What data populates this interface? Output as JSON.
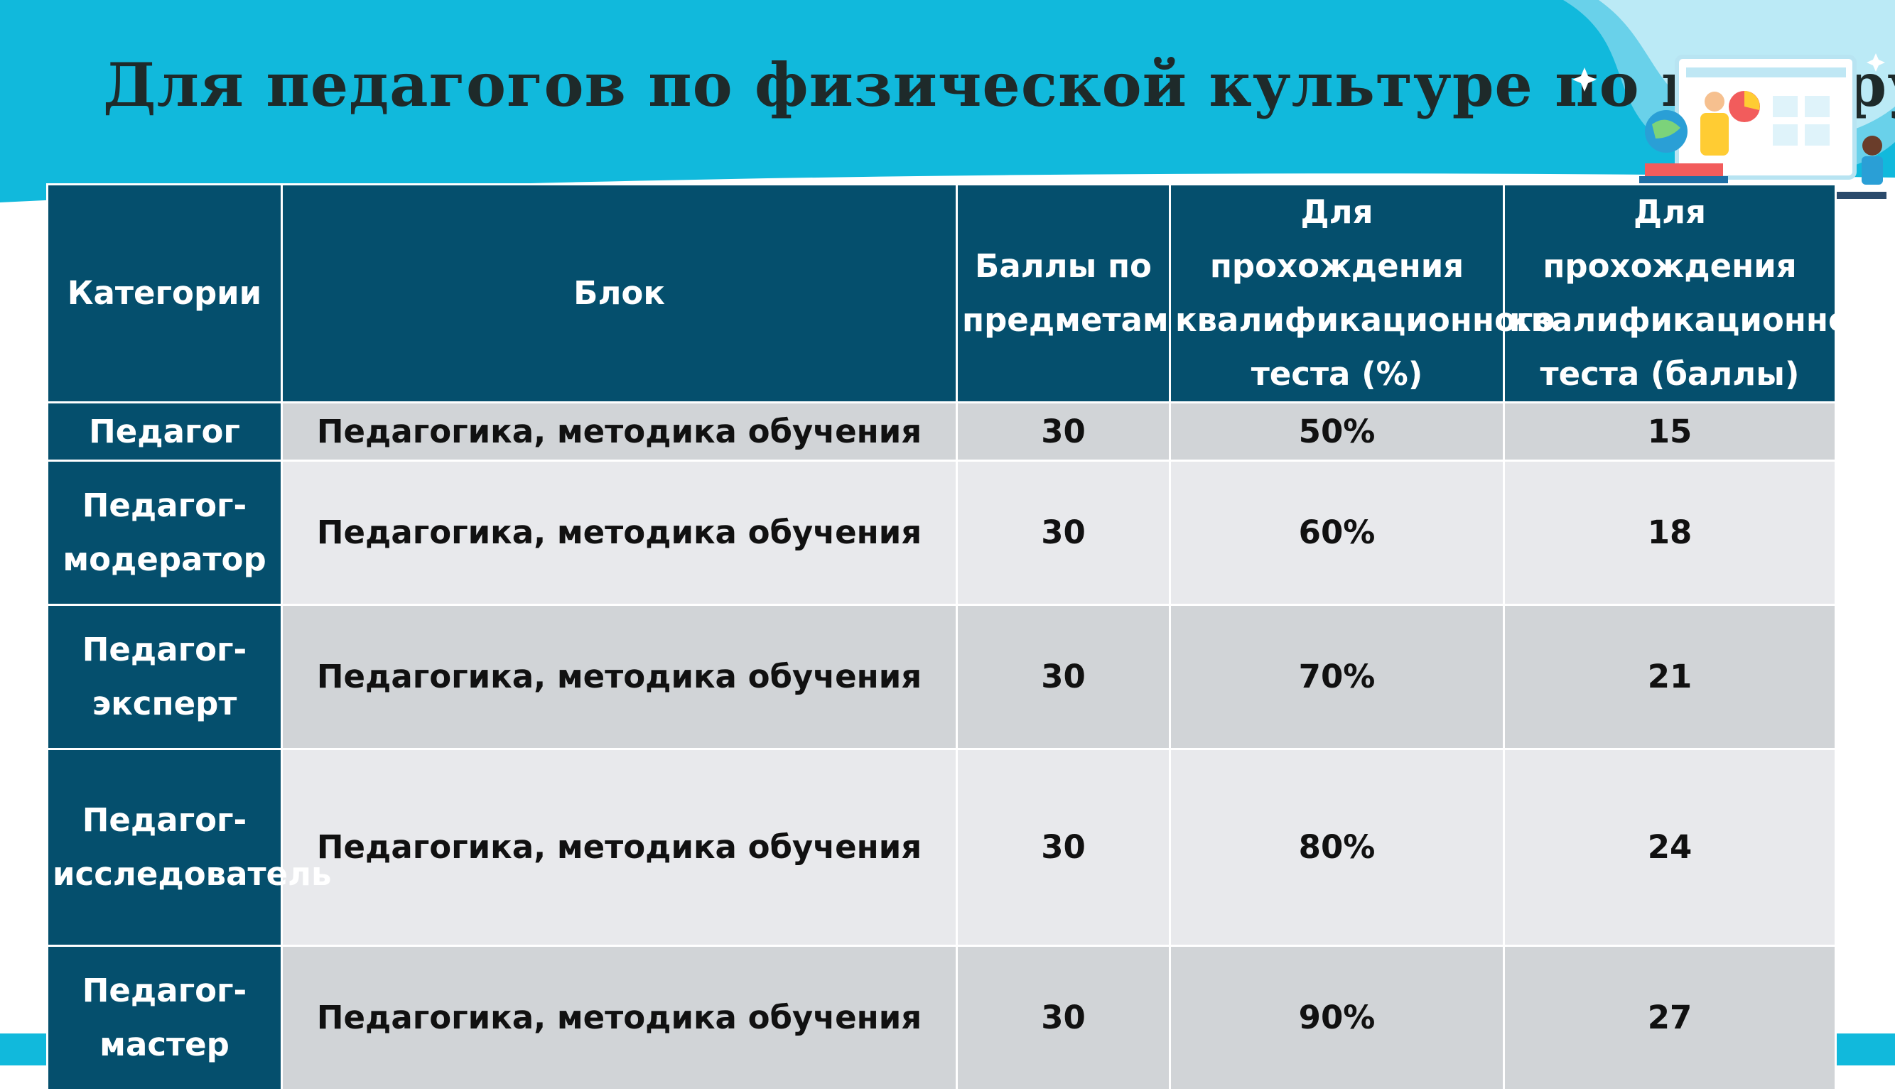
{
  "slide": {
    "title": "Для педагогов по физической культуре по выбору:",
    "colors": {
      "header_bg": "#054f6d",
      "accent_cyan": "#11b9dc",
      "row_dark": "#d1d4d7",
      "row_light": "#e8e9ec"
    },
    "illustration_icon": "teacher-at-board-illustration"
  },
  "table": {
    "headers": [
      "Категории",
      "Блок",
      "Баллы по предметам",
      "Для прохождения квалификационного теста (%)",
      "Для прохождения квалификационного теста (баллы)"
    ],
    "rows": [
      {
        "category": "Педагог",
        "block": "Педагогика, методика обучения",
        "points": "30",
        "percent": "50%",
        "score": "15"
      },
      {
        "category": "Педагог-модератор",
        "block": "Педагогика, методика обучения",
        "points": "30",
        "percent": "60%",
        "score": "18"
      },
      {
        "category": "Педагог-эксперт",
        "block": "Педагогика, методика обучения",
        "points": "30",
        "percent": "70%",
        "score": "21"
      },
      {
        "category": "Педагог-исследователь",
        "block": "Педагогика, методика обучения",
        "points": "30",
        "percent": "80%",
        "score": "24"
      },
      {
        "category": "Педагог-мастер",
        "block": "Педагогика, методика обучения",
        "points": "30",
        "percent": "90%",
        "score": "27"
      }
    ]
  }
}
